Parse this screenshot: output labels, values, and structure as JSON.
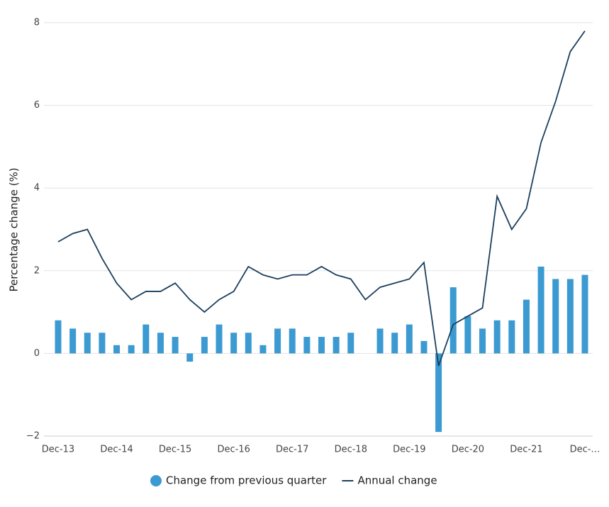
{
  "chart_data": {
    "type": "bar-line",
    "y_label": "Percentage change (%)",
    "categories": [
      "Dec-13",
      null,
      null,
      null,
      "Dec-14",
      null,
      null,
      null,
      "Dec-15",
      null,
      null,
      null,
      "Dec-16",
      null,
      null,
      null,
      "Dec-17",
      null,
      null,
      null,
      "Dec-18",
      null,
      null,
      null,
      "Dec-19",
      null,
      null,
      null,
      "Dec-20",
      null,
      null,
      null,
      "Dec-21",
      null,
      null,
      null,
      "Dec-…"
    ],
    "series": [
      {
        "name": "Change from previous quarter",
        "type": "bar",
        "color": "#3a9ad1",
        "values": [
          0.8,
          0.6,
          0.5,
          0.5,
          0.2,
          0.2,
          0.7,
          0.5,
          0.4,
          -0.2,
          0.4,
          0.7,
          0.5,
          0.5,
          0.2,
          0.6,
          0.6,
          0.4,
          0.4,
          0.4,
          0.5,
          0,
          0.6,
          0.5,
          0.7,
          0.3,
          -1.9,
          1.6,
          0.9,
          0.6,
          0.8,
          0.8,
          1.3,
          2.1,
          1.8,
          1.8,
          1.9
        ]
      },
      {
        "name": "Annual change",
        "type": "line",
        "color": "#1b3f5e",
        "values": [
          2.7,
          2.9,
          3.0,
          2.3,
          1.7,
          1.3,
          1.5,
          1.5,
          1.7,
          1.3,
          1.0,
          1.3,
          1.5,
          2.1,
          1.9,
          1.8,
          1.9,
          1.9,
          2.1,
          1.9,
          1.8,
          1.3,
          1.6,
          1.7,
          1.8,
          2.2,
          -0.3,
          0.7,
          0.9,
          1.1,
          3.8,
          3.0,
          3.5,
          5.1,
          6.1,
          7.3,
          7.8
        ]
      }
    ],
    "ylim": [
      -2,
      8
    ],
    "yticks": [
      {
        "value": -2,
        "label": "−2"
      },
      0,
      2,
      4,
      6,
      8
    ],
    "grid": true
  }
}
